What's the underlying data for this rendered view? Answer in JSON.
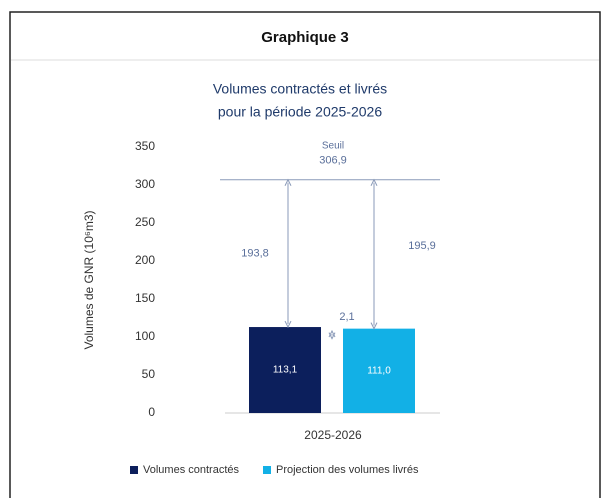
{
  "header": {
    "title": "Graphique 3"
  },
  "chart_data": {
    "type": "bar",
    "title": [
      "Volumes contractés et livrés",
      "pour la période 2025-2026"
    ],
    "y_label": "Volumes de GNR (10⁶m3)",
    "categories": [
      "2025-2026"
    ],
    "series": [
      {
        "name": "Volumes contractés",
        "color": "#0c1f5c",
        "values": [
          113.1
        ],
        "value_labels": [
          "113,1"
        ]
      },
      {
        "name": "Projection des volumes livrés",
        "color": "#12b0e6",
        "values": [
          111.0
        ],
        "value_labels": [
          "111,0"
        ]
      }
    ],
    "threshold": {
      "label": "Seuil",
      "value": 306.9,
      "value_label": "306,9"
    },
    "annotations": [
      {
        "value": 193.8,
        "label": "193,8"
      },
      {
        "value": 195.9,
        "label": "195,9"
      },
      {
        "value": 2.1,
        "label": "2,1"
      }
    ],
    "ylim": [
      0,
      350
    ],
    "yticks": [
      0,
      50,
      100,
      150,
      200,
      250,
      300,
      350
    ],
    "legend": "bottom",
    "grid": false
  }
}
